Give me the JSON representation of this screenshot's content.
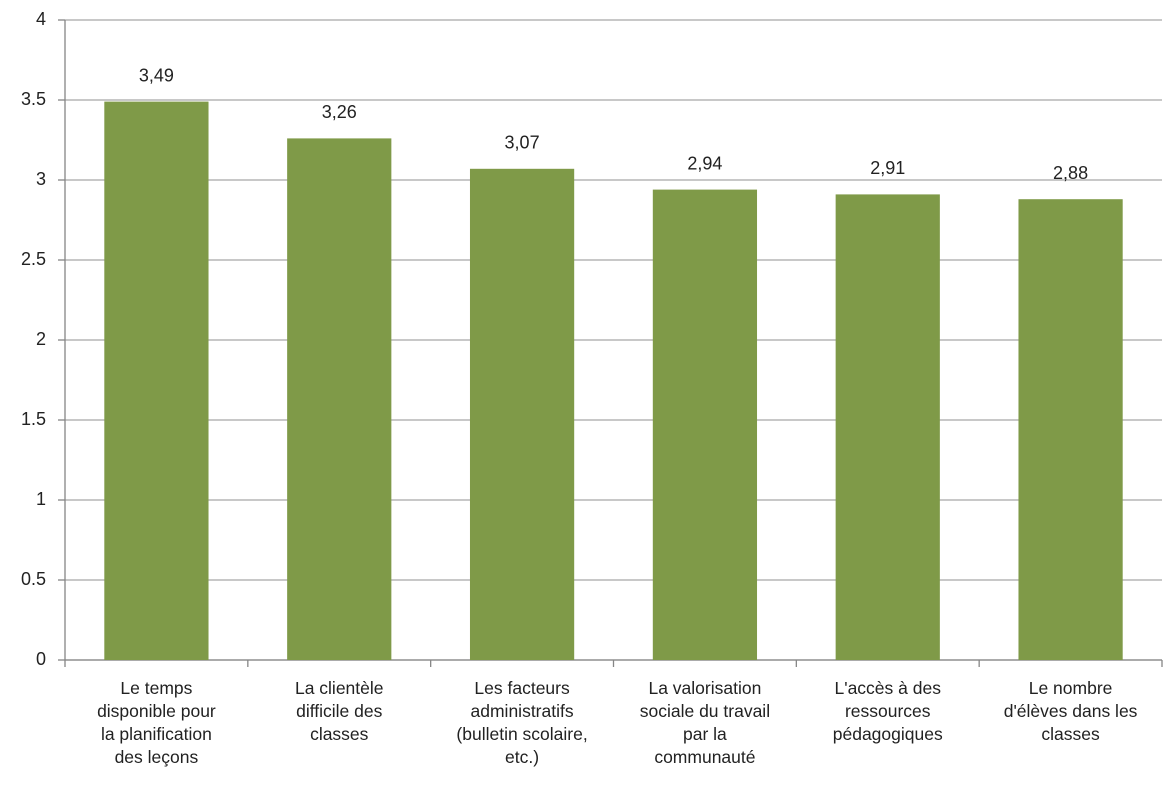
{
  "chart_data": {
    "type": "bar",
    "categories": [
      "Le temps\ndisponible pour\nla planification\ndes leçons",
      "La clientèle\ndifficile des\nclasses",
      "Les facteurs\nadministratifs\n(bulletin scolaire,\netc.)",
      "La valorisation\nsociale du travail\npar la\ncommunauté",
      "L'accès à des\nressources\npédagogiques",
      "Le nombre\nd'élèves dans les\nclasses"
    ],
    "values": [
      3.49,
      3.26,
      3.07,
      2.94,
      2.91,
      2.88
    ],
    "value_labels": [
      "3,49",
      "3,26",
      "3,07",
      "2,94",
      "2,91",
      "2,88"
    ],
    "color": "#7f9a48",
    "ylim": [
      0,
      4
    ],
    "yticks": [
      0,
      0.5,
      1,
      1.5,
      2,
      2.5,
      3,
      3.5,
      4
    ],
    "grid": true
  }
}
